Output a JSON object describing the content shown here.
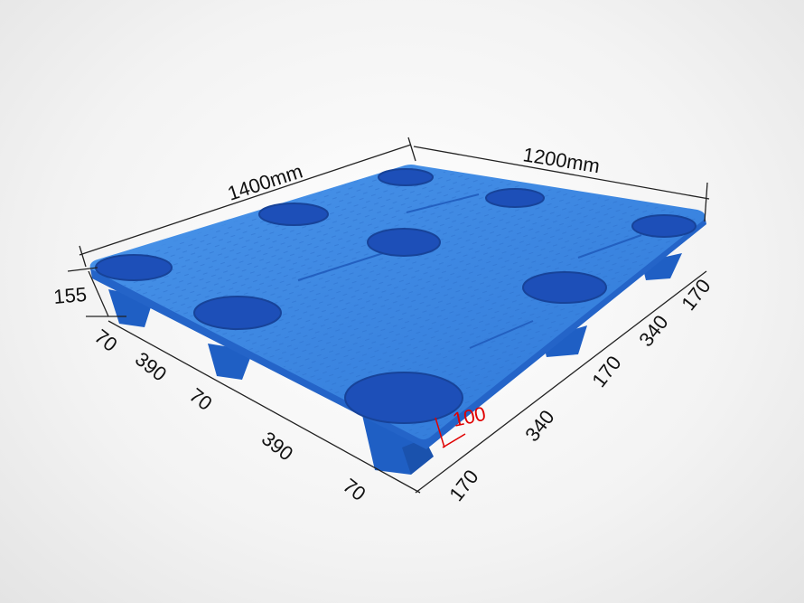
{
  "product": "plastic-pallet",
  "colors": {
    "pallet": "#3a86e0",
    "pallet_dark": "#1f5fc4",
    "hole": "#1d4fb8",
    "highlight_dimension": "#e00000",
    "dimension_line": "#222222"
  },
  "dimensions": {
    "length": "1400mm",
    "width": "1200mm",
    "height": "155",
    "leg_height": "100",
    "length_segments": [
      "70",
      "390",
      "70",
      "390",
      "70"
    ],
    "width_segments": [
      "170",
      "340",
      "170",
      "340",
      "170"
    ]
  }
}
